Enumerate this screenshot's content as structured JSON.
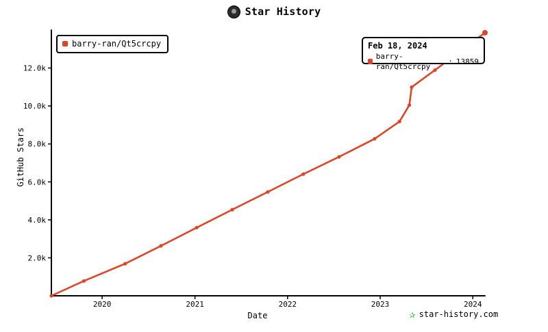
{
  "header": {
    "title": "Star History",
    "avatar_icon": "repo-owner-avatar"
  },
  "legend": {
    "series_name": "barry-ran/Qt5crcpy"
  },
  "tooltip": {
    "date": "Feb 18, 2024",
    "series_name": "barry-ran/Qt5crcpy",
    "value": "13859"
  },
  "watermark": {
    "text": "star-history.com",
    "icon": "star-icon"
  },
  "colors": {
    "series": "#dd4528",
    "axis": "#000000",
    "watermark_icon": "#2fb82f"
  },
  "chart_data": {
    "type": "line",
    "title": "Star History",
    "xlabel": "Date",
    "ylabel": "GitHub Stars",
    "x_ticks": [
      "2020",
      "2021",
      "2022",
      "2023",
      "2024"
    ],
    "y_ticks": [
      "2.0k",
      "4.0k",
      "6.0k",
      "8.0k",
      "10.0k",
      "12.0k"
    ],
    "ylim": [
      0,
      14000
    ],
    "xlim": [
      "2019-06-15",
      "2024-02-18"
    ],
    "grid": false,
    "legend_position": "top-left",
    "series": [
      {
        "name": "barry-ran/Qt5crcpy",
        "points": [
          [
            "2019-06-15",
            0
          ],
          [
            "2019-10-21",
            780
          ],
          [
            "2020-04-01",
            1690
          ],
          [
            "2020-08-20",
            2630
          ],
          [
            "2021-01-08",
            3590
          ],
          [
            "2021-05-28",
            4540
          ],
          [
            "2021-10-15",
            5470
          ],
          [
            "2022-03-04",
            6410
          ],
          [
            "2022-07-23",
            7320
          ],
          [
            "2022-12-10",
            8270
          ],
          [
            "2023-03-18",
            9180
          ],
          [
            "2023-04-26",
            10050
          ],
          [
            "2023-05-05",
            10990
          ],
          [
            "2023-08-05",
            11890
          ],
          [
            "2024-02-18",
            13859
          ]
        ]
      }
    ]
  }
}
